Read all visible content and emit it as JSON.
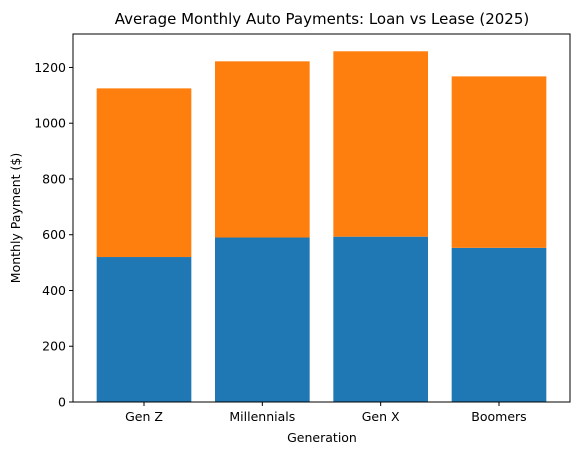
{
  "chart_data": {
    "type": "bar",
    "stacked": true,
    "title": "Average Monthly Auto Payments: Loan vs Lease (2025)",
    "xlabel": "Generation",
    "ylabel": "Monthly Payment ($)",
    "categories": [
      "Gen Z",
      "Millennials",
      "Gen X",
      "Boomers"
    ],
    "series": [
      {
        "values": [
          520,
          590,
          593,
          553
        ],
        "color": "#1f77b4"
      },
      {
        "values": [
          605,
          632,
          665,
          615
        ],
        "color": "#ff7f0e"
      }
    ],
    "ylim": [
      0,
      1320
    ],
    "yticks": [
      0,
      200,
      400,
      600,
      800,
      1000,
      1200
    ],
    "grid": false,
    "legend": "none"
  }
}
